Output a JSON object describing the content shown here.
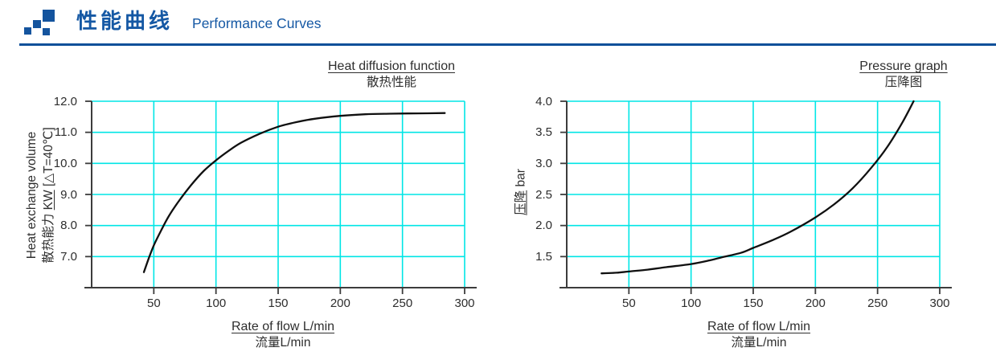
{
  "header": {
    "title_cn": "性能曲线",
    "title_en": "Performance Curves"
  },
  "colors": {
    "brand_blue": "#1558a4",
    "divider_blue": "#0e509a",
    "grid_cyan": "#00e6e6",
    "axis_dark": "#3c3c3c",
    "curve_black": "#101010",
    "text_dark": "#2d2d2d"
  },
  "chart_data": [
    {
      "type": "line",
      "title": "Heat diffusion function",
      "subtitle_cn": "散热性能",
      "xlabel": "Rate of flow L/min",
      "xlabel_cn": "流量L/min",
      "ylabel_line1": "Heat exchange volume",
      "ylabel_cn_prefix": "散热能力 ",
      "ylabel_cn_underlined": "KW",
      "ylabel_cn_suffix": " [△T=40℃]",
      "xlim": [
        0,
        300
      ],
      "ylim": [
        6,
        12
      ],
      "x_tick_labels": [
        "50",
        "100",
        "150",
        "200",
        "250",
        "300"
      ],
      "y_tick_labels": [
        "12.0",
        "11.0",
        "10.0",
        "9.0",
        "8.0",
        "7.0"
      ],
      "grid": true,
      "legend": false,
      "series": [
        {
          "name": "heat-exchange-curve",
          "points": [
            [
              42,
              6.5
            ],
            [
              46,
              6.95
            ],
            [
              50,
              7.36
            ],
            [
              56,
              7.85
            ],
            [
              62,
              8.3
            ],
            [
              70,
              8.78
            ],
            [
              80,
              9.3
            ],
            [
              90,
              9.75
            ],
            [
              100,
              10.1
            ],
            [
              110,
              10.4
            ],
            [
              120,
              10.66
            ],
            [
              135,
              10.95
            ],
            [
              150,
              11.18
            ],
            [
              165,
              11.33
            ],
            [
              180,
              11.44
            ],
            [
              200,
              11.53
            ],
            [
              220,
              11.58
            ],
            [
              240,
              11.6
            ],
            [
              262,
              11.61
            ],
            [
              284,
              11.62
            ]
          ]
        }
      ]
    },
    {
      "type": "line",
      "title": "Pressure graph",
      "subtitle_cn": "压降图",
      "xlabel": "Rate of flow L/min",
      "xlabel_cn": "流量L/min",
      "ylabel_underlined": "压降",
      "ylabel_suffix": " bar",
      "xlim": [
        0,
        300
      ],
      "ylim": [
        1,
        4
      ],
      "x_tick_labels": [
        "50",
        "100",
        "150",
        "200",
        "250",
        "300"
      ],
      "y_tick_labels": [
        "4.0",
        "3.5",
        "3.0",
        "2.5",
        "2.0",
        "1.5"
      ],
      "grid": true,
      "legend": false,
      "series": [
        {
          "name": "pressure-drop-curve",
          "points": [
            [
              28,
              1.23
            ],
            [
              40,
              1.24
            ],
            [
              50,
              1.26
            ],
            [
              65,
              1.29
            ],
            [
              80,
              1.33
            ],
            [
              100,
              1.38
            ],
            [
              115,
              1.44
            ],
            [
              125,
              1.49
            ],
            [
              140,
              1.56
            ],
            [
              150,
              1.64
            ],
            [
              165,
              1.76
            ],
            [
              180,
              1.9
            ],
            [
              200,
              2.13
            ],
            [
              215,
              2.34
            ],
            [
              230,
              2.6
            ],
            [
              245,
              2.93
            ],
            [
              258,
              3.27
            ],
            [
              270,
              3.66
            ],
            [
              279,
              4.0
            ]
          ]
        }
      ]
    }
  ]
}
